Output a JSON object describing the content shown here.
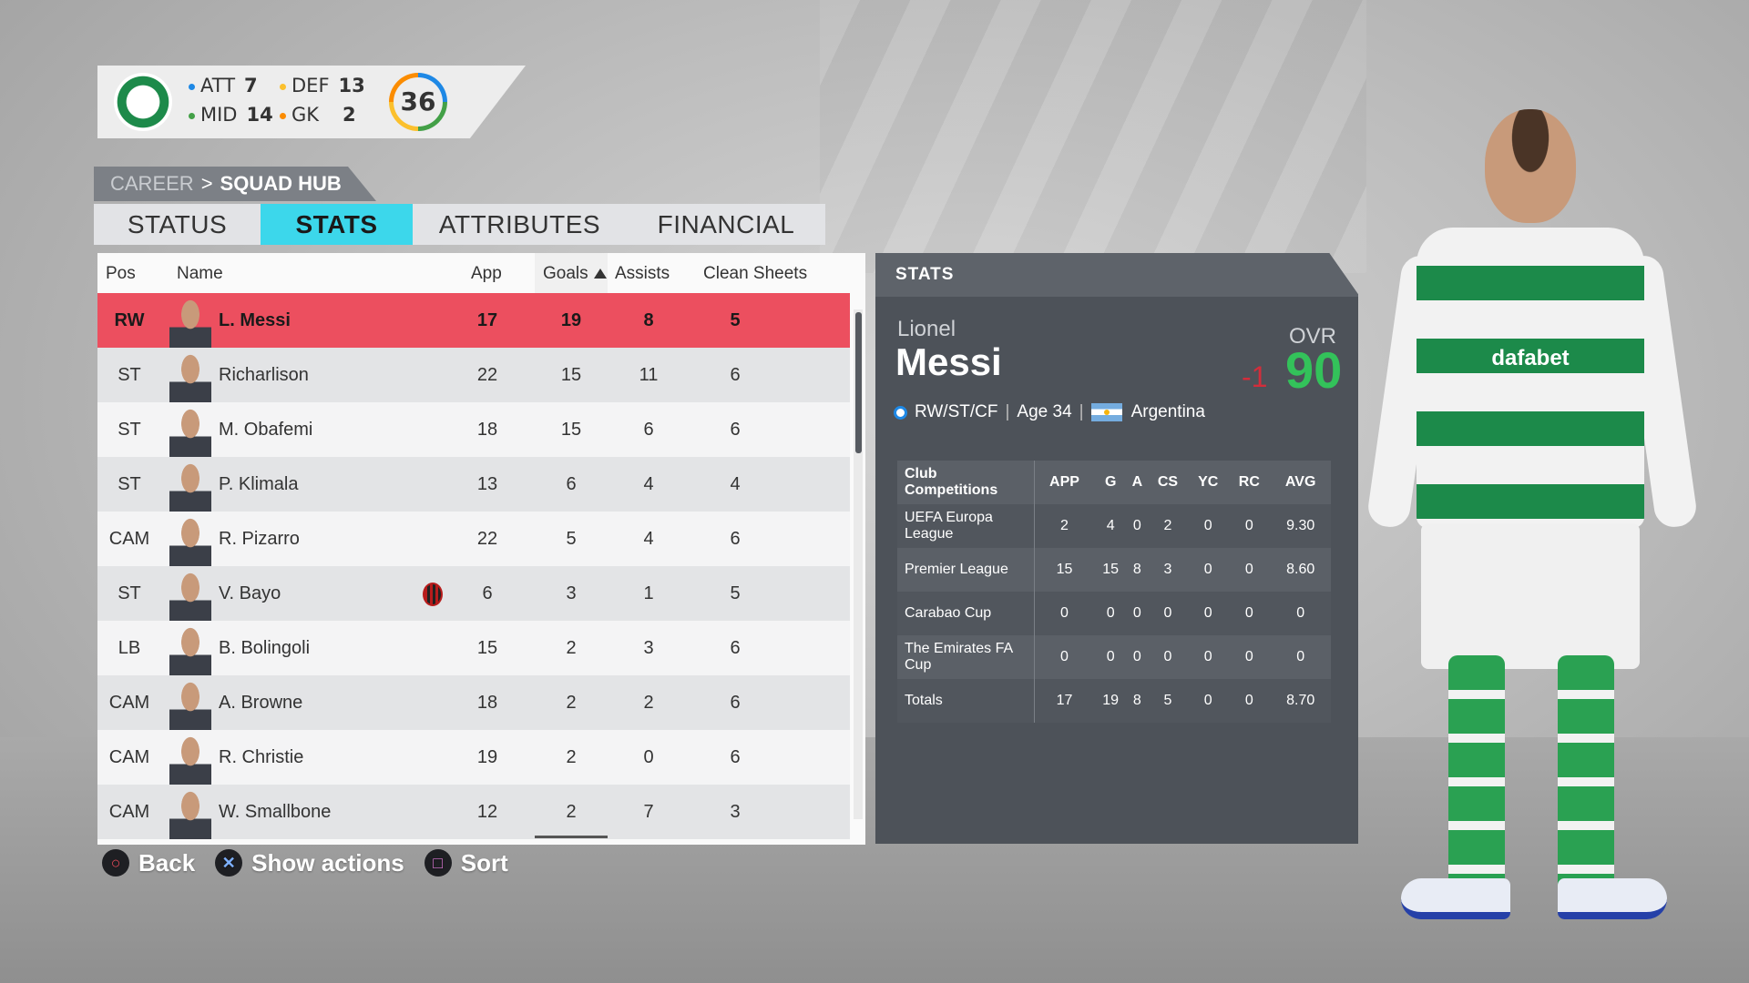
{
  "club": {
    "att_label": "ATT",
    "att": "7",
    "def_label": "DEF",
    "def": "13",
    "mid_label": "MID",
    "mid": "14",
    "gk_label": "GK",
    "gk": "2",
    "rating": "36"
  },
  "breadcrumb": {
    "parent": "CAREER",
    "current": "SQUAD HUB"
  },
  "tabs": [
    {
      "label": "STATUS"
    },
    {
      "label": "STATS"
    },
    {
      "label": "ATTRIBUTES"
    },
    {
      "label": "FINANCIAL"
    }
  ],
  "table": {
    "headers": {
      "pos": "Pos",
      "name": "Name",
      "app": "App",
      "goals": "Goals",
      "assists": "Assists",
      "clean_sheets": "Clean Sheets"
    },
    "rows": [
      {
        "pos": "RW",
        "name": "L. Messi",
        "app": "17",
        "goals": "19",
        "assists": "8",
        "cs": "5"
      },
      {
        "pos": "ST",
        "name": "Richarlison",
        "app": "22",
        "goals": "15",
        "assists": "11",
        "cs": "6"
      },
      {
        "pos": "ST",
        "name": "M. Obafemi",
        "app": "18",
        "goals": "15",
        "assists": "6",
        "cs": "6"
      },
      {
        "pos": "ST",
        "name": "P. Klimala",
        "app": "13",
        "goals": "6",
        "assists": "4",
        "cs": "4"
      },
      {
        "pos": "CAM",
        "name": "R. Pizarro",
        "app": "22",
        "goals": "5",
        "assists": "4",
        "cs": "6"
      },
      {
        "pos": "ST",
        "name": "V. Bayo",
        "app": "6",
        "goals": "3",
        "assists": "1",
        "cs": "5"
      },
      {
        "pos": "LB",
        "name": "B. Bolingoli",
        "app": "15",
        "goals": "2",
        "assists": "3",
        "cs": "6"
      },
      {
        "pos": "CAM",
        "name": "A. Browne",
        "app": "18",
        "goals": "2",
        "assists": "2",
        "cs": "6"
      },
      {
        "pos": "CAM",
        "name": "R. Christie",
        "app": "19",
        "goals": "2",
        "assists": "0",
        "cs": "6"
      },
      {
        "pos": "CAM",
        "name": "W. Smallbone",
        "app": "12",
        "goals": "2",
        "assists": "7",
        "cs": "3"
      }
    ]
  },
  "footer": {
    "back": "Back",
    "actions": "Show actions",
    "sort": "Sort"
  },
  "stats": {
    "header": "STATS",
    "first_name": "Lionel",
    "last_name": "Messi",
    "ovr_label": "OVR",
    "ovr_change": "-1",
    "ovr": "90",
    "positions": "RW/ST/CF",
    "age": "Age 34",
    "nation": "Argentina",
    "comp_headers": [
      "Club Competitions",
      "APP",
      "G",
      "A",
      "CS",
      "YC",
      "RC",
      "AVG"
    ],
    "comp_rows": [
      [
        "UEFA Europa League",
        "2",
        "4",
        "0",
        "2",
        "0",
        "0",
        "9.30"
      ],
      [
        "Premier League",
        "15",
        "15",
        "8",
        "3",
        "0",
        "0",
        "8.60"
      ],
      [
        "Carabao Cup",
        "0",
        "0",
        "0",
        "0",
        "0",
        "0",
        "0"
      ],
      [
        "The Emirates FA Cup",
        "0",
        "0",
        "0",
        "0",
        "0",
        "0",
        "0"
      ],
      [
        "Totals",
        "17",
        "19",
        "8",
        "5",
        "0",
        "0",
        "8.70"
      ]
    ]
  },
  "player_sponsor": "dafabet",
  "colors": {
    "accent": "#3cd7eb",
    "selected_row": "#ec4f5f",
    "ovr_green": "#33c25a",
    "change_red": "#d22d3b"
  }
}
